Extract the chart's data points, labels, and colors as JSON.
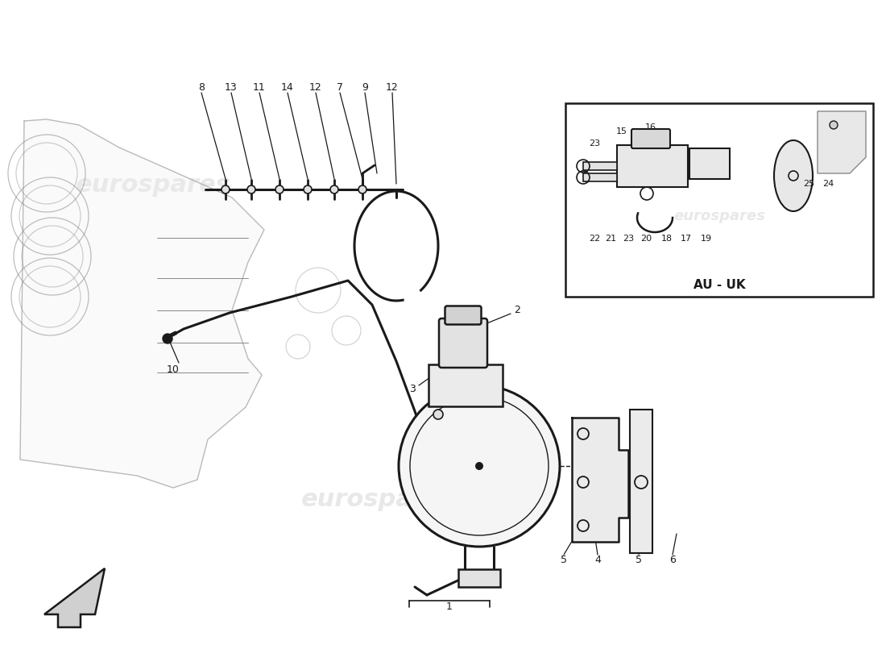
{
  "background_color": "#ffffff",
  "line_color": "#1a1a1a",
  "light_line_color": "#888888",
  "watermark_color": "#cccccc",
  "watermark_text": "eurospares",
  "box_label": "AU - UK"
}
